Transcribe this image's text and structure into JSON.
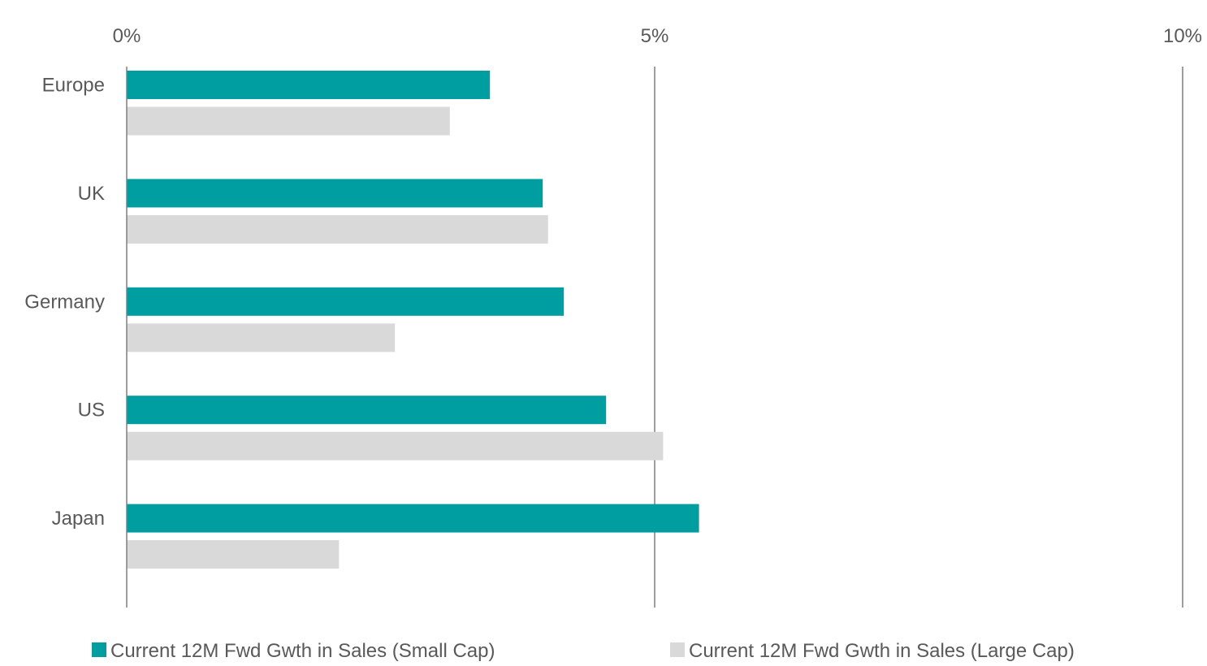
{
  "chart_data": {
    "type": "bar",
    "orientation": "horizontal",
    "x_axis_position": "top",
    "categories": [
      "Europe",
      "UK",
      "Germany",
      "US",
      "Japan"
    ],
    "xlim": [
      0,
      10
    ],
    "x_ticks": [
      0,
      5,
      10
    ],
    "x_tick_labels": [
      "0%",
      "5%",
      "10%"
    ],
    "grid": "vertical",
    "legend_position": "bottom",
    "series": [
      {
        "name": "Current 12M Fwd Gwth in Sales (Small Cap)",
        "color": "#009ea0",
        "values": [
          3.44,
          3.94,
          4.14,
          4.54,
          5.42
        ]
      },
      {
        "name": "Current 12M Fwd Gwth in Sales (Large Cap)",
        "color": "#d9d9d9",
        "values": [
          3.06,
          3.99,
          2.54,
          5.08,
          2.01
        ]
      }
    ],
    "colors": {
      "axis_text": "#595959",
      "grid_line": "#7f7f7f",
      "axis_line": "#7f7f7f"
    }
  }
}
